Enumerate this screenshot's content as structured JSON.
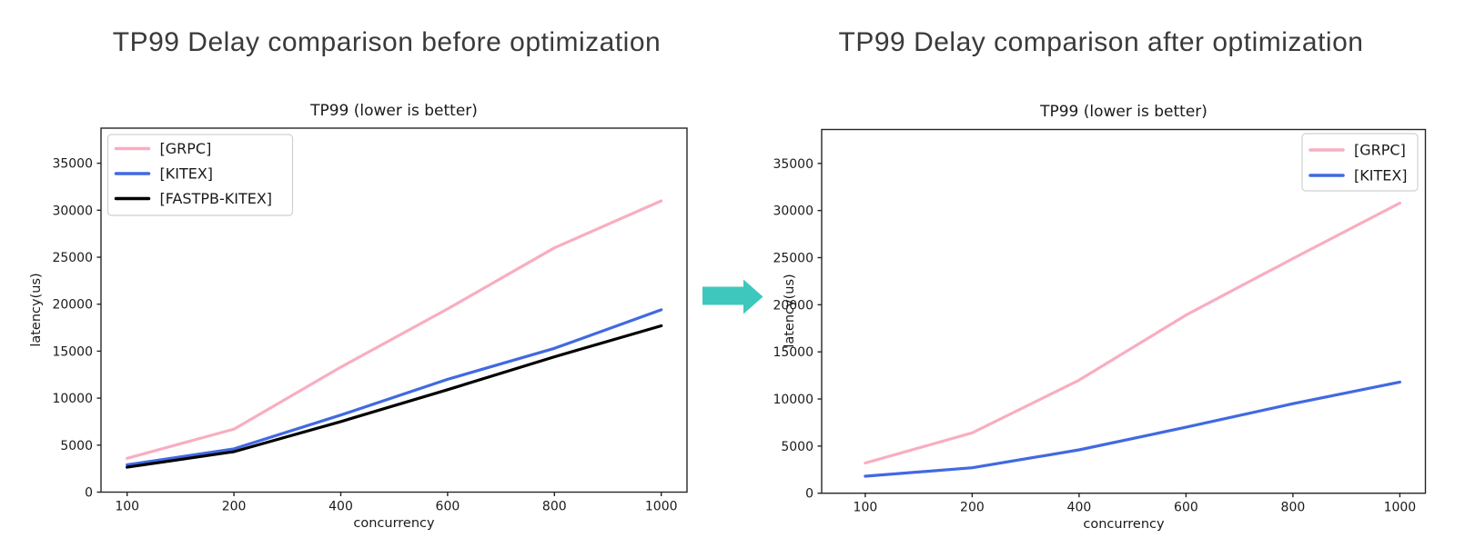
{
  "page": {
    "left_header": "TP99 Delay comparison before optimization",
    "right_header": "TP99 Delay comparison after optimization"
  },
  "arrow": {
    "name": "transform-arrow",
    "direction": "right",
    "color": "#3EC8BD"
  },
  "chart_data": [
    {
      "type": "line",
      "title": "TP99 (lower is better)",
      "xlabel": "concurrency",
      "ylabel": "latency(us)",
      "categories": [
        "100",
        "200",
        "400",
        "600",
        "800",
        "1000"
      ],
      "yticks": [
        0,
        5000,
        10000,
        15000,
        20000,
        25000,
        30000,
        35000
      ],
      "ylim": [
        0,
        38700
      ],
      "grid": false,
      "legend_position": "upper-left",
      "series": [
        {
          "name": "[GRPC]",
          "color": "#F8AEC0",
          "values": [
            3600,
            6700,
            13300,
            19500,
            26000,
            31000
          ]
        },
        {
          "name": "[KITEX]",
          "color": "#4169E1",
          "values": [
            2900,
            4600,
            8200,
            12000,
            15300,
            19400
          ]
        },
        {
          "name": "[FASTPB-KITEX]",
          "color": "#000000",
          "values": [
            2650,
            4300,
            7500,
            10900,
            14400,
            17700
          ]
        }
      ]
    },
    {
      "type": "line",
      "title": "TP99 (lower is better)",
      "xlabel": "concurrency",
      "ylabel": "latency(us)",
      "categories": [
        "100",
        "200",
        "400",
        "600",
        "800",
        "1000"
      ],
      "yticks": [
        0,
        5000,
        10000,
        15000,
        20000,
        25000,
        30000,
        35000
      ],
      "ylim": [
        0,
        38600
      ],
      "grid": false,
      "legend_position": "upper-right",
      "series": [
        {
          "name": "[GRPC]",
          "color": "#F8AEC0",
          "values": [
            3200,
            6400,
            12000,
            18900,
            24900,
            30800
          ]
        },
        {
          "name": "[KITEX]",
          "color": "#4169E1",
          "values": [
            1800,
            2700,
            4600,
            7000,
            9500,
            11800
          ]
        }
      ]
    }
  ]
}
